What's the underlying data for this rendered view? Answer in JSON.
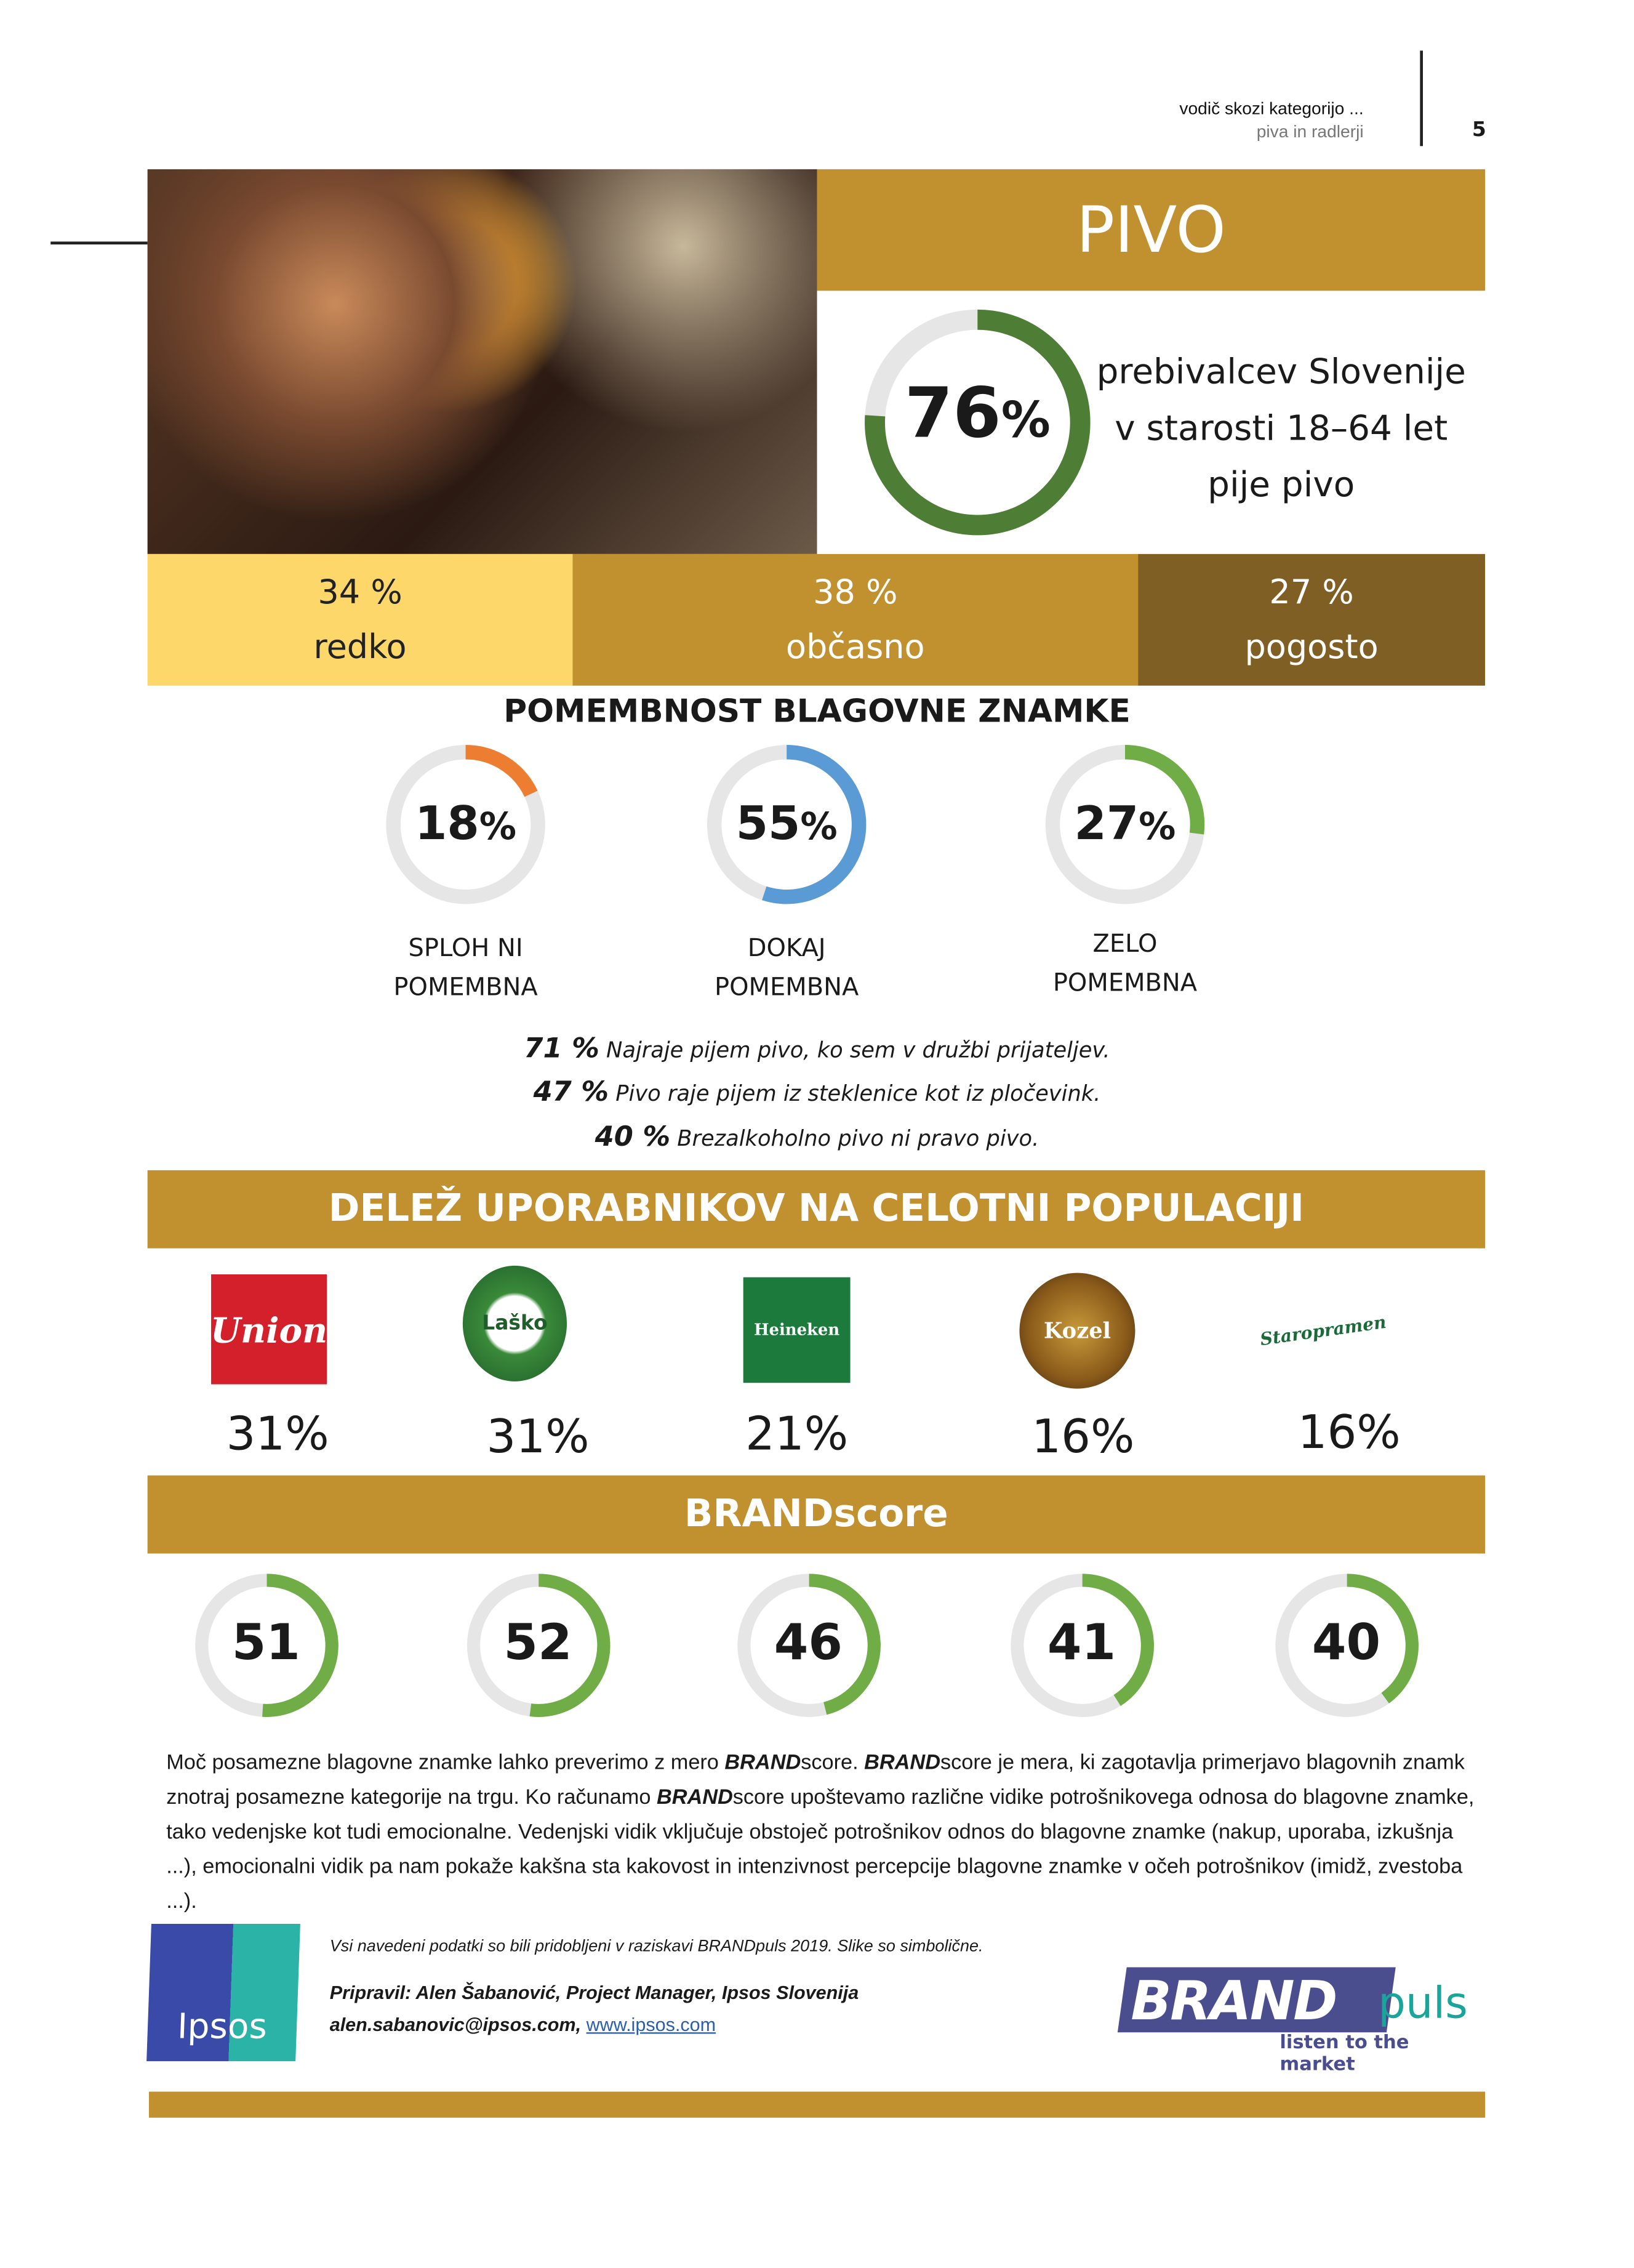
{
  "header": {
    "line1": "vodič skozi kategorijo ...",
    "line2": "piva in radlerji",
    "page_number": "5"
  },
  "hero": {
    "title": "PIVO",
    "donut_value": "76",
    "donut_percent": 76,
    "percent_sign": "%",
    "desc": [
      "prebivalcev Slovenije",
      "v starosti 18–64 let",
      "pije pivo"
    ]
  },
  "frequency": [
    {
      "value": "34 %",
      "label": "redko",
      "color": "#FDD76A"
    },
    {
      "value": "38 %",
      "label": "občasno",
      "color": "#C0912E"
    },
    {
      "value": "27 %",
      "label": "pogosto",
      "color": "#7F5F24"
    }
  ],
  "importance": {
    "title": "POMEMBNOST BLAGOVNE ZNAMKE",
    "items": [
      {
        "value": "18",
        "percent": 18,
        "color": "#ED7D31",
        "label1": "SPLOH NI",
        "label2": "POMEMBNA"
      },
      {
        "value": "55",
        "percent": 55,
        "color": "#5B9BD5",
        "label1": "DOKAJ",
        "label2": "POMEMBNA"
      },
      {
        "value": "27",
        "percent": 27,
        "color": "#70AD47",
        "label1": "ZELO",
        "label2": "POMEMBNA"
      }
    ]
  },
  "statements": [
    {
      "value": "71 %",
      "text": "Najraje pijem pivo, ko sem v družbi prijateljev."
    },
    {
      "value": "47 %",
      "text": "Pivo raje pijem iz steklenice kot iz pločevink."
    },
    {
      "value": "40 %",
      "text": "Brezalkoholno pivo ni pravo pivo."
    }
  ],
  "users": {
    "title": "DELEŽ UPORABNIKOV NA CELOTNI POPULACIJI",
    "brands": [
      {
        "logo": "Union",
        "value": "31%"
      },
      {
        "logo": "Laško",
        "value": "31%"
      },
      {
        "logo": "Heineken",
        "value": "21%"
      },
      {
        "logo": "Kozel",
        "value": "16%"
      },
      {
        "logo": "Staropramen",
        "value": "16%"
      }
    ]
  },
  "brandscore": {
    "title": "BRANDscore",
    "scores": [
      "51",
      "52",
      "46",
      "41",
      "40"
    ],
    "color": "#70AD47"
  },
  "paragraph": [
    {
      "t": "Moč posamezne blagovne znamke lahko preverimo z mero "
    },
    {
      "t": "BRAND",
      "b": true
    },
    {
      "t": "score. "
    },
    {
      "t": "BRAND",
      "b": true
    },
    {
      "t": "score je mera, ki zagotavlja primerjavo blagovnih znamk znotraj posamezne kategorije na trgu. Ko računamo "
    },
    {
      "t": "BRAND",
      "b": true
    },
    {
      "t": "score upoštevamo različne vidike potrošnikovega odnosa do blagovne znamke, tako vedenjske kot tudi emocionalne. Vedenjski vidik vključuje obstoječ potrošnikov odnos do blagovne znamke (nakup, uporaba, izkušnja ...), emocionalni vidik pa nam pokaže kakšna sta kakovost in intenzivnost percepcije blagovne znamke v očeh potrošnikov (imidž, zvestoba ...)."
    }
  ],
  "footer": {
    "note": "Vsi navedeni podatki so bili pridobljeni v raziskavi BRANDpuls 2019. Slike so simbolične.",
    "author": "Pripravil: Alen Šabanović, Project Manager, Ipsos Slovenija",
    "email": "alen.sabanovic@ipsos.com,",
    "link": "www.ipsos.com",
    "ipsos_logo": "Ipsos",
    "brandpuls_logo": {
      "brand": "BRAND",
      "puls": "puls",
      "tagline": "listen to the market"
    }
  },
  "colors": {
    "gold": "#C0912E",
    "green_dark": "#4E7E35",
    "track": "#E6E6E6"
  }
}
